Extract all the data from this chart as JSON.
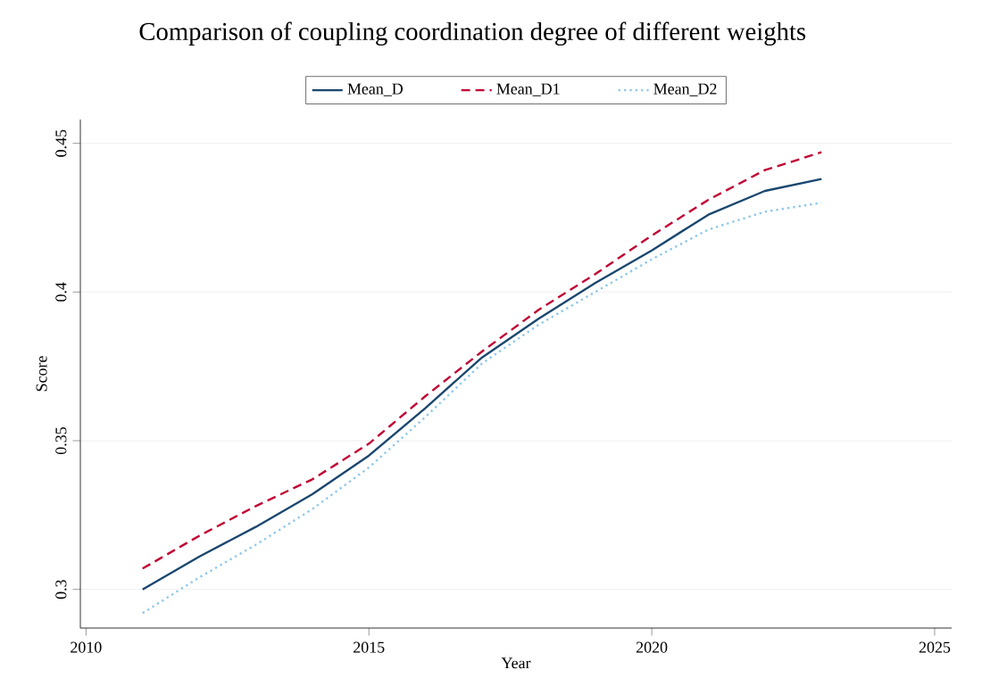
{
  "chart_data": {
    "type": "line",
    "title": "Comparison of coupling coordination degree of different weights",
    "xlabel": "Year",
    "ylabel": "Score",
    "x": [
      2011,
      2012,
      2013,
      2014,
      2015,
      2016,
      2017,
      2018,
      2019,
      2020,
      2021,
      2022,
      2023
    ],
    "series": [
      {
        "name": "Mean_D",
        "color": "#1a476f",
        "line_style": "solid",
        "values": [
          0.3,
          0.311,
          0.321,
          0.332,
          0.345,
          0.361,
          0.378,
          0.391,
          0.403,
          0.414,
          0.426,
          0.434,
          0.438
        ]
      },
      {
        "name": "Mean_D1",
        "color": "#c10534",
        "line_style": "dashed",
        "values": [
          0.307,
          0.318,
          0.328,
          0.337,
          0.349,
          0.365,
          0.38,
          0.394,
          0.406,
          0.419,
          0.431,
          0.441,
          0.447
        ]
      },
      {
        "name": "Mean_D2",
        "color": "#90c8e8",
        "line_style": "dotted",
        "values": [
          0.292,
          0.304,
          0.315,
          0.327,
          0.341,
          0.358,
          0.376,
          0.389,
          0.4,
          0.411,
          0.421,
          0.427,
          0.43
        ]
      }
    ],
    "xlim": [
      2009.9,
      2025.3
    ],
    "ylim": [
      0.287,
      0.458
    ],
    "xticks": [
      2010,
      2015,
      2020,
      2025
    ],
    "yticks": [
      0.3,
      0.35,
      0.4,
      0.45
    ],
    "grid": "y",
    "legend": "top",
    "marker": "none"
  }
}
